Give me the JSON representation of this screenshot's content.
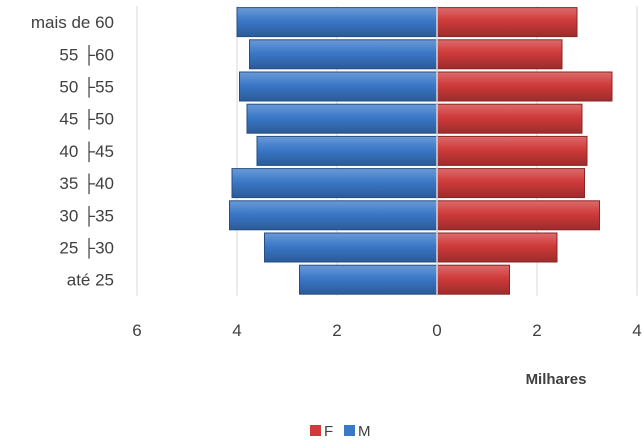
{
  "chart_data": {
    "type": "bar",
    "orientation": "horizontal",
    "subtype": "population-pyramid",
    "categories": [
      "mais de 60",
      "55 ├60",
      "50 ├55",
      "45 ├50",
      "40 ├45",
      "35 ├40",
      "30 ├35",
      "25 ├30",
      "até 25"
    ],
    "series": [
      {
        "name": "F",
        "color": "#d03a3a",
        "values": [
          2.8,
          2.5,
          3.5,
          2.9,
          3.0,
          2.95,
          3.25,
          2.4,
          1.45
        ]
      },
      {
        "name": "M",
        "color": "#3a78c8",
        "values": [
          4.0,
          3.75,
          3.95,
          3.8,
          3.6,
          4.1,
          4.15,
          3.45,
          2.75
        ]
      }
    ],
    "x_ticks": [
      "6",
      "4",
      "2",
      "0",
      "2",
      "4"
    ],
    "xlim": [
      -6,
      4
    ],
    "units_label": "Milhares",
    "grid": "vertical",
    "legend": "bottom"
  }
}
